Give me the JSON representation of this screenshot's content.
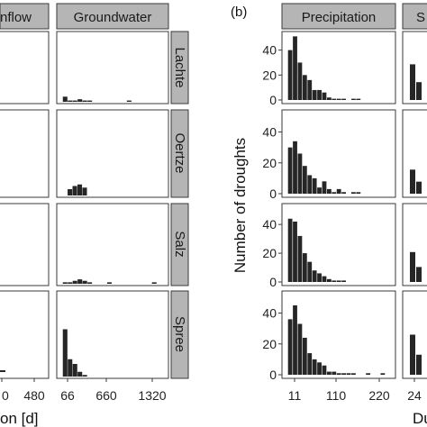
{
  "colors": {
    "strip": "#b5b5b5",
    "bar": "#262626",
    "panel_border": "#3a3a3a",
    "grid": "#e6e6e6",
    "background": "#ffffff"
  },
  "panel_a": {
    "strips": [
      "nflow",
      "Groundwater"
    ],
    "row_labels": [
      "Lachte",
      "Oertze",
      "Salz",
      "Spree"
    ],
    "left_ticks": [
      "0",
      "480"
    ],
    "groundwater_ticks": [
      "66",
      "660",
      "1320"
    ],
    "xlabel": "on [d]"
  },
  "panel_b": {
    "tag": "(b)",
    "strips": [
      "Precipitation",
      "S"
    ],
    "y_ticks": [
      "0",
      "20",
      "40"
    ],
    "x_ticks": [
      "11",
      "110",
      "220"
    ],
    "s_ticks": [
      "24"
    ],
    "ylabel": "Number of droughts",
    "xlabel": "Du"
  },
  "chart_data": [
    {
      "type": "bar",
      "title": "Groundwater",
      "x_unit": "duration [d]",
      "xlim": [
        0,
        1400
      ],
      "x_ticks": [
        66,
        660,
        1320
      ],
      "series": [
        {
          "name": "Lachte",
          "x": [
            66,
            132,
            198,
            264,
            330,
            396,
            924
          ],
          "values": [
            4,
            1,
            1,
            2,
            1,
            1,
            1
          ]
        },
        {
          "name": "Oertze",
          "x": [
            130,
            196,
            262,
            328
          ],
          "values": [
            4,
            6,
            7,
            5
          ]
        },
        {
          "name": "Salz",
          "x": [
            66,
            132,
            198,
            264,
            330,
            396,
            660,
            1260
          ],
          "values": [
            1,
            1,
            2,
            3,
            2,
            1,
            1,
            1
          ]
        },
        {
          "name": "Spree",
          "x": [
            66,
            132,
            198,
            264,
            330
          ],
          "values": [
            30,
            11,
            8,
            3,
            1
          ]
        }
      ]
    },
    {
      "type": "bar",
      "title": "Precipitation",
      "ylabel": "Number of droughts",
      "x_unit": "duration [d]",
      "xlim": [
        0,
        240
      ],
      "ylim": [
        0,
        52
      ],
      "y_ticks": [
        0,
        20,
        40
      ],
      "x_ticks": [
        11,
        110,
        220
      ],
      "series": [
        {
          "name": "Lachte",
          "x": [
            11,
            22,
            33,
            44,
            55,
            66,
            77,
            88,
            99,
            110,
            121,
            132,
            154,
            165
          ],
          "values": [
            40,
            51,
            30,
            20,
            16,
            8,
            8,
            6,
            2,
            1,
            1,
            1,
            1,
            1
          ]
        },
        {
          "name": "Oertze",
          "x": [
            11,
            22,
            33,
            44,
            55,
            66,
            77,
            88,
            99,
            110,
            121,
            132,
            154,
            165
          ],
          "values": [
            30,
            34,
            26,
            18,
            12,
            10,
            4,
            8,
            3,
            1,
            3,
            1,
            1,
            1
          ]
        },
        {
          "name": "Salz",
          "x": [
            11,
            22,
            33,
            44,
            55,
            66,
            77,
            88,
            99,
            110,
            121,
            132
          ],
          "values": [
            44,
            42,
            32,
            20,
            14,
            8,
            6,
            4,
            2,
            1,
            1,
            1
          ]
        },
        {
          "name": "Spree",
          "x": [
            11,
            22,
            33,
            44,
            55,
            66,
            77,
            88,
            99,
            110,
            121,
            132,
            143,
            154,
            187,
            220
          ],
          "values": [
            36,
            45,
            33,
            24,
            14,
            10,
            8,
            6,
            2,
            2,
            1,
            1,
            1,
            1,
            1,
            1
          ]
        }
      ]
    }
  ]
}
